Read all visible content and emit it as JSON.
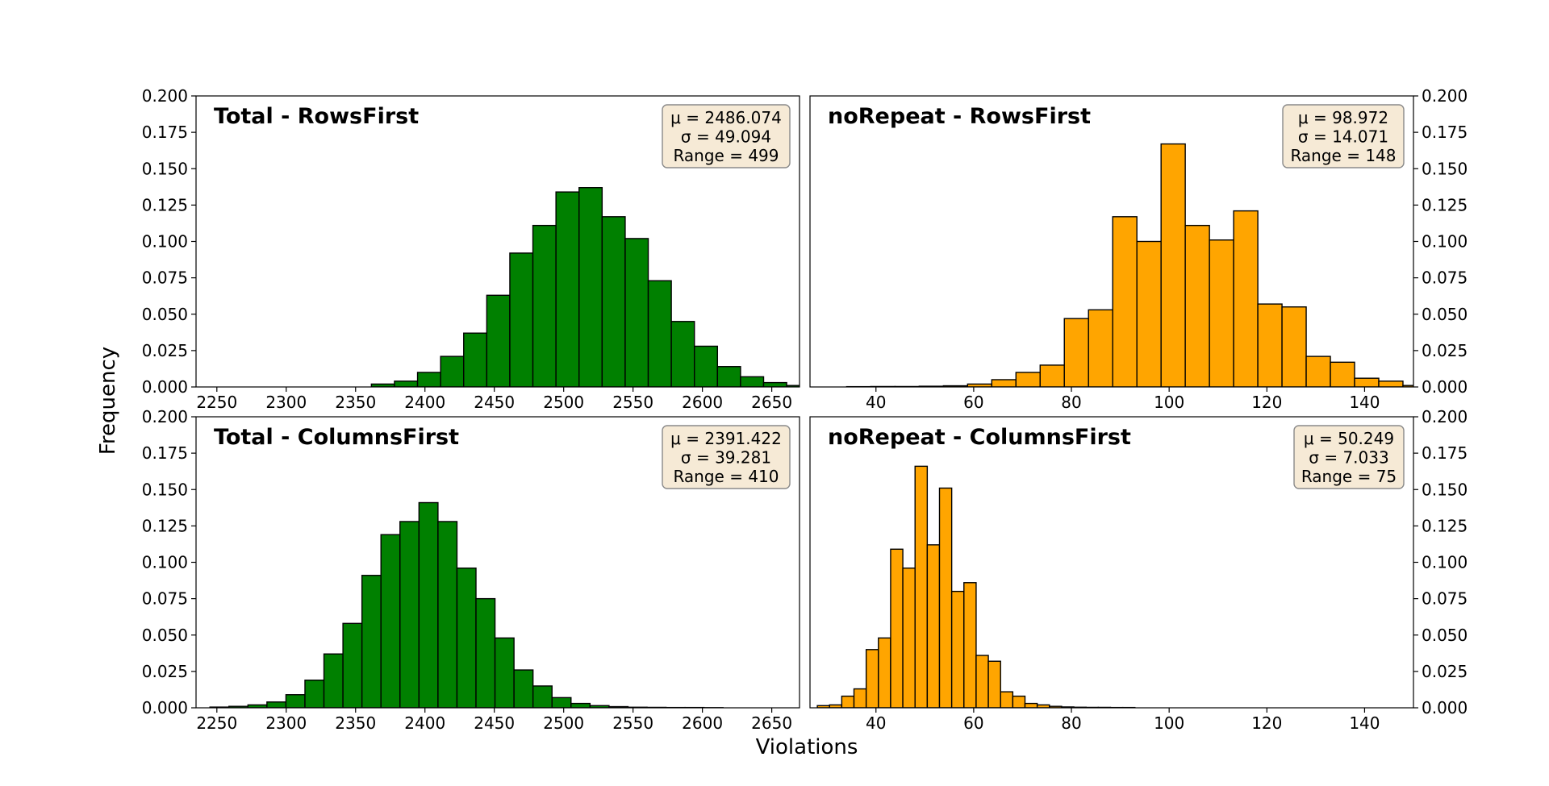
{
  "figure": {
    "ylabel": "Frequency",
    "xlabel": "Violations"
  },
  "chart_data": [
    {
      "type": "bar",
      "title": "Total - RowsFirst",
      "stats": [
        "μ = 2486.074",
        "σ = 49.094",
        "Range = 499"
      ],
      "color": "#008000",
      "xlim": [
        2235,
        2670
      ],
      "ylim": [
        0,
        0.2
      ],
      "xticks": [
        2250,
        2300,
        2350,
        2400,
        2450,
        2500,
        2550,
        2600,
        2650
      ],
      "xticklabels": [
        "2250",
        "2300",
        "2350",
        "2400",
        "2450",
        "2500",
        "2550",
        "2600",
        "2650"
      ],
      "yticks": [
        0,
        0.025,
        0.05,
        0.075,
        0.1,
        0.125,
        0.15,
        0.175,
        0.2
      ],
      "yticklabels": [
        "0.000",
        "0.025",
        "0.050",
        "0.075",
        "0.100",
        "0.125",
        "0.150",
        "0.175",
        "0.200"
      ],
      "yaxis_side": "left",
      "bin_start": 2245,
      "bin_width": 16.63,
      "values": [
        0,
        0,
        0,
        0,
        0,
        0,
        0,
        0.002,
        0.004,
        0.01,
        0.021,
        0.037,
        0.063,
        0.092,
        0.111,
        0.134,
        0.137,
        0.117,
        0.102,
        0.073,
        0.045,
        0.028,
        0.014,
        0.007,
        0.003,
        0.001,
        0.0004
      ]
    },
    {
      "type": "bar",
      "title": "noRepeat - RowsFirst",
      "stats": [
        "μ = 98.972",
        "σ = 14.071",
        "Range = 148"
      ],
      "color": "#ffa500",
      "xlim": [
        26.5,
        150
      ],
      "ylim": [
        0,
        0.2
      ],
      "xticks": [
        40,
        60,
        80,
        100,
        120,
        140
      ],
      "xticklabels": [
        "40",
        "60",
        "80",
        "100",
        "120",
        "140"
      ],
      "yticks": [
        0,
        0.025,
        0.05,
        0.075,
        0.1,
        0.125,
        0.15,
        0.175,
        0.2
      ],
      "yticklabels": [
        "0.000",
        "0.025",
        "0.050",
        "0.075",
        "0.100",
        "0.125",
        "0.150",
        "0.175",
        "0.200"
      ],
      "yaxis_side": "right",
      "bin_start": 34,
      "bin_width": 4.95,
      "values": [
        0.0002,
        0.0003,
        0.0003,
        0.0005,
        0.0008,
        0.002,
        0.005,
        0.01,
        0.015,
        0.047,
        0.053,
        0.117,
        0.1,
        0.167,
        0.111,
        0.101,
        0.121,
        0.057,
        0.055,
        0.021,
        0.017,
        0.006,
        0.004,
        0.001
      ]
    },
    {
      "type": "bar",
      "title": "Total - ColumnsFirst",
      "stats": [
        "μ = 2391.422",
        "σ = 39.281",
        "Range = 410"
      ],
      "color": "#008000",
      "xlim": [
        2235,
        2670
      ],
      "ylim": [
        0,
        0.2
      ],
      "xticks": [
        2250,
        2300,
        2350,
        2400,
        2450,
        2500,
        2550,
        2600,
        2650
      ],
      "xticklabels": [
        "2250",
        "2300",
        "2350",
        "2400",
        "2450",
        "2500",
        "2550",
        "2600",
        "2650"
      ],
      "yticks": [
        0,
        0.025,
        0.05,
        0.075,
        0.1,
        0.125,
        0.15,
        0.175,
        0.2
      ],
      "yticklabels": [
        "0.000",
        "0.025",
        "0.050",
        "0.075",
        "0.100",
        "0.125",
        "0.150",
        "0.175",
        "0.200"
      ],
      "yaxis_side": "left",
      "bin_start": 2245,
      "bin_width": 13.7,
      "values": [
        0.0005,
        0.001,
        0.002,
        0.004,
        0.009,
        0.019,
        0.037,
        0.058,
        0.091,
        0.119,
        0.128,
        0.141,
        0.128,
        0.096,
        0.075,
        0.048,
        0.026,
        0.015,
        0.007,
        0.003,
        0.0015,
        0.0008,
        0.0004,
        0.0003,
        0.0002,
        0.0002,
        0.0001
      ]
    },
    {
      "type": "bar",
      "title": "noRepeat - ColumnsFirst",
      "stats": [
        "μ = 50.249",
        "σ = 7.033",
        "Range = 75"
      ],
      "color": "#ffa500",
      "xlim": [
        26.5,
        150
      ],
      "ylim": [
        0,
        0.2
      ],
      "xticks": [
        40,
        60,
        80,
        100,
        120,
        140
      ],
      "xticklabels": [
        "40",
        "60",
        "80",
        "100",
        "120",
        "140"
      ],
      "yticks": [
        0,
        0.025,
        0.05,
        0.075,
        0.1,
        0.125,
        0.15,
        0.175,
        0.2
      ],
      "yticklabels": [
        "0.000",
        "0.025",
        "0.050",
        "0.075",
        "0.100",
        "0.125",
        "0.150",
        "0.175",
        "0.200"
      ],
      "yaxis_side": "right",
      "bin_start": 28,
      "bin_width": 2.5,
      "values": [
        0.0015,
        0.002,
        0.008,
        0.013,
        0.04,
        0.048,
        0.109,
        0.096,
        0.166,
        0.112,
        0.151,
        0.08,
        0.086,
        0.036,
        0.032,
        0.011,
        0.008,
        0.003,
        0.002,
        0.001,
        0.0006,
        0.0004,
        0.0003,
        0.0003,
        0.0002,
        0.0002
      ]
    }
  ]
}
